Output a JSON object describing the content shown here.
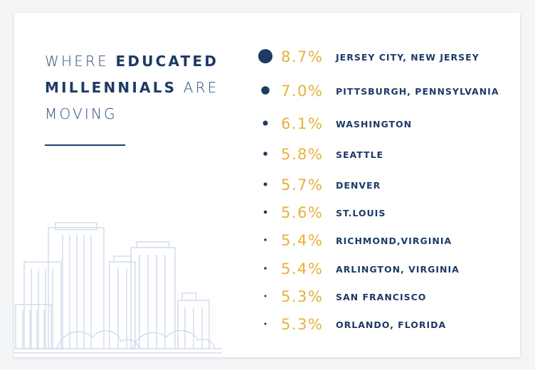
{
  "title": {
    "part1": "WHERE ",
    "part2": "EDUCATED",
    "part3": "MILLENNIALS",
    "part4": " ARE",
    "part5": "MOVING"
  },
  "colors": {
    "accent": "#e8b03a",
    "navy": "#1e3a66",
    "skyline": "#c9d6ea"
  },
  "chart_data": {
    "type": "bubble-list",
    "title": "WHERE EDUCATED MILLENNIALS ARE MOVING",
    "items": [
      {
        "city": "JERSEY CITY, NEW JERSEY",
        "value": 8.7,
        "label": "8.7%"
      },
      {
        "city": "PITTSBURGH, PENNSYLVANIA",
        "value": 7.0,
        "label": "7.0%"
      },
      {
        "city": "WASHINGTON",
        "value": 6.1,
        "label": "6.1%"
      },
      {
        "city": "SEATTLE",
        "value": 5.8,
        "label": "5.8%"
      },
      {
        "city": "DENVER",
        "value": 5.7,
        "label": "5.7%"
      },
      {
        "city": "ST.LOUIS",
        "value": 5.6,
        "label": "5.6%"
      },
      {
        "city": "RICHMOND,VIRGINIA",
        "value": 5.4,
        "label": "5.4%"
      },
      {
        "city": "ARLINGTON, VIRGINIA",
        "value": 5.4,
        "label": "5.4%"
      },
      {
        "city": "SAN FRANCISCO",
        "value": 5.3,
        "label": "5.3%"
      },
      {
        "city": "ORLANDO, FLORIDA",
        "value": 5.3,
        "label": "5.3%"
      }
    ]
  }
}
